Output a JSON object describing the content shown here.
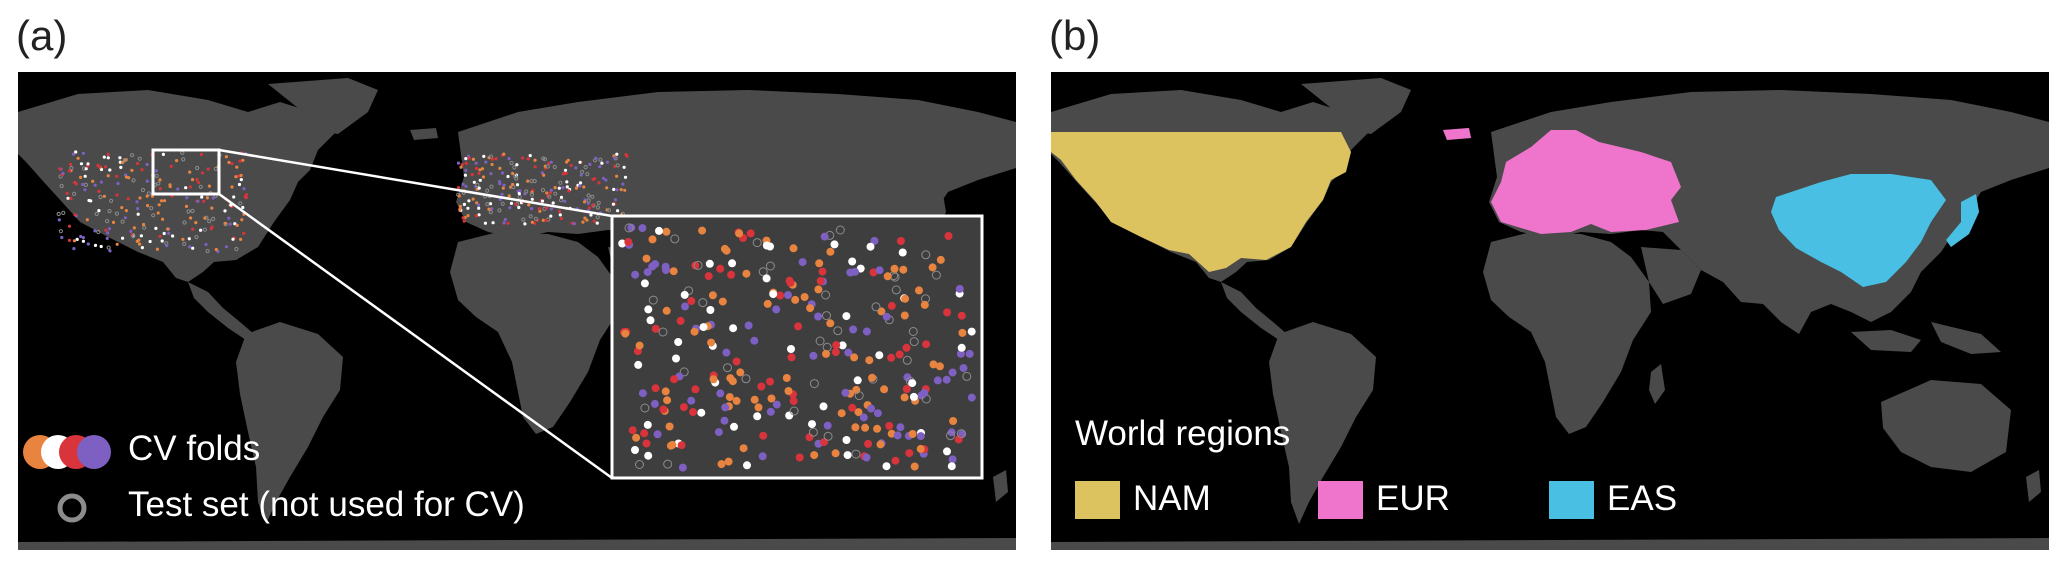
{
  "panel_a": {
    "label": "(a)",
    "legend": {
      "cv_folds_label": "CV folds",
      "test_set_label": "Test set (not used for CV)",
      "fold_colors": [
        "#e8843f",
        "#ffffff",
        "#d9343b",
        "#7e5fc2"
      ],
      "test_ring_color": "#8c8c8c"
    }
  },
  "panel_b": {
    "label": "(b)",
    "legend": {
      "title": "World regions",
      "regions": [
        {
          "name": "NAM",
          "color": "#ddc260"
        },
        {
          "name": "EUR",
          "color": "#ee74cc"
        },
        {
          "name": "EAS",
          "color": "#48bfe3"
        }
      ]
    }
  },
  "colors": {
    "ocean": "#000000",
    "land": "#4a4a4a",
    "inset_border": "#ffffff"
  }
}
